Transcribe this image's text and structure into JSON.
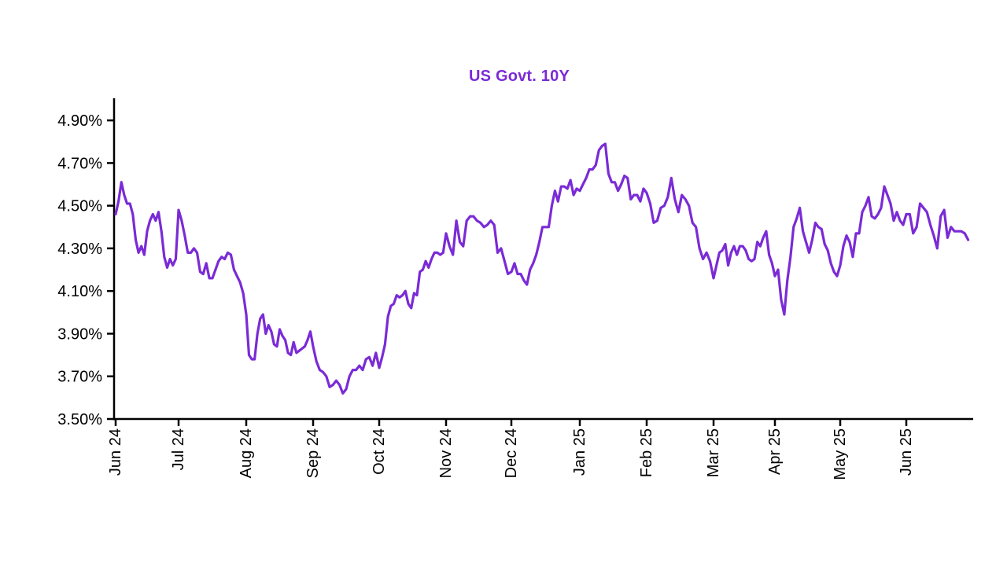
{
  "chart_data": {
    "type": "line",
    "title": "US Govt. 10Y",
    "series_name": "US Govt. 10Y yield",
    "xlabel": "",
    "ylabel": "",
    "ylim": [
      3.5,
      5.0
    ],
    "grid": false,
    "legend": "none",
    "colors": {
      "line": "#7A2BD6",
      "title": "#7A2BD6",
      "axis": "#000000",
      "tick_text": "#000000",
      "background": "#FFFFFF"
    },
    "yticks": [
      {
        "value": 4.9,
        "label": "4.90%"
      },
      {
        "value": 4.7,
        "label": "4.70%"
      },
      {
        "value": 4.5,
        "label": "4.50%"
      },
      {
        "value": 4.3,
        "label": "4.30%"
      },
      {
        "value": 4.1,
        "label": "4.10%"
      },
      {
        "value": 3.9,
        "label": "3.90%"
      },
      {
        "value": 3.7,
        "label": "3.70%"
      },
      {
        "value": 3.5,
        "label": "3.50%"
      }
    ],
    "months": [
      {
        "label": "Jun 24",
        "values": [
          4.46,
          4.52,
          4.61,
          4.55,
          4.51,
          4.51,
          4.46,
          4.34,
          4.28,
          4.31,
          4.27,
          4.38,
          4.43,
          4.46,
          4.43,
          4.47,
          4.38,
          4.26,
          4.21,
          4.25,
          4.22,
          4.25
        ]
      },
      {
        "label": "Jul 24",
        "values": [
          4.48,
          4.43,
          4.36,
          4.28,
          4.28,
          4.3,
          4.28,
          4.19,
          4.18,
          4.23,
          4.16,
          4.16,
          4.2,
          4.24,
          4.26,
          4.25,
          4.28,
          4.27,
          4.2,
          4.17,
          4.14,
          4.09
        ]
      },
      {
        "label": "Aug 24",
        "values": [
          3.99,
          3.8,
          3.78,
          3.78,
          3.9,
          3.97,
          3.99,
          3.9,
          3.94,
          3.91,
          3.85,
          3.84,
          3.92,
          3.89,
          3.87,
          3.81,
          3.8,
          3.86,
          3.81,
          3.82,
          3.83,
          3.84,
          3.87,
          3.91
        ]
      },
      {
        "label": "Sep 24",
        "values": [
          3.84,
          3.77,
          3.73,
          3.72,
          3.7,
          3.65,
          3.66,
          3.68,
          3.66,
          3.62,
          3.64,
          3.7,
          3.73,
          3.73,
          3.75,
          3.73,
          3.78,
          3.79,
          3.75,
          3.81
        ]
      },
      {
        "label": "Oct 24",
        "values": [
          3.74,
          3.79,
          3.85,
          3.98,
          4.03,
          4.04,
          4.08,
          4.07,
          4.08,
          4.1,
          4.04,
          4.02,
          4.09,
          4.08,
          4.19,
          4.2,
          4.24,
          4.21,
          4.25,
          4.28,
          4.28,
          4.27,
          4.28
        ]
      },
      {
        "label": "Nov 24",
        "values": [
          4.37,
          4.31,
          4.27,
          4.43,
          4.33,
          4.31,
          4.43,
          4.45,
          4.45,
          4.43,
          4.42,
          4.4,
          4.41,
          4.43,
          4.41,
          4.28,
          4.3,
          4.24,
          4.18
        ]
      },
      {
        "label": "Dec 24",
        "values": [
          4.19,
          4.23,
          4.18,
          4.18,
          4.15,
          4.13,
          4.2,
          4.23,
          4.27,
          4.33,
          4.4,
          4.4,
          4.4,
          4.5,
          4.57,
          4.52,
          4.59,
          4.59,
          4.58,
          4.62,
          4.55,
          4.58
        ]
      },
      {
        "label": "Jan 25",
        "values": [
          4.57,
          4.6,
          4.63,
          4.67,
          4.67,
          4.69,
          4.76,
          4.78,
          4.79,
          4.65,
          4.61,
          4.61,
          4.57,
          4.6,
          4.64,
          4.63,
          4.53,
          4.55,
          4.55,
          4.52,
          4.58
        ]
      },
      {
        "label": "Feb 25",
        "values": [
          4.56,
          4.51,
          4.42,
          4.43,
          4.49,
          4.5,
          4.54,
          4.63,
          4.53,
          4.47,
          4.55,
          4.53,
          4.5,
          4.42,
          4.4,
          4.3,
          4.25,
          4.28,
          4.24
        ]
      },
      {
        "label": "Mar 25",
        "values": [
          4.16,
          4.22,
          4.28,
          4.29,
          4.32,
          4.22,
          4.28,
          4.31,
          4.27,
          4.31,
          4.31,
          4.29,
          4.25,
          4.24,
          4.25,
          4.33,
          4.31,
          4.35,
          4.38,
          4.27,
          4.23
        ]
      },
      {
        "label": "Apr 25",
        "values": [
          4.17,
          4.2,
          4.06,
          3.99,
          4.15,
          4.26,
          4.4,
          4.44,
          4.49,
          4.38,
          4.33,
          4.28,
          4.34,
          4.42,
          4.4,
          4.39,
          4.32,
          4.29,
          4.23,
          4.19,
          4.17
        ]
      },
      {
        "label": "May 25",
        "values": [
          4.22,
          4.31,
          4.36,
          4.33,
          4.26,
          4.37,
          4.37,
          4.47,
          4.5,
          4.54,
          4.45,
          4.44,
          4.46,
          4.49,
          4.59,
          4.55,
          4.51,
          4.43,
          4.47,
          4.43,
          4.41
        ]
      },
      {
        "label": "Jun 25",
        "values": [
          4.46,
          4.46,
          4.37,
          4.4,
          4.51,
          4.49,
          4.47,
          4.41,
          4.36,
          4.3,
          4.45,
          4.48,
          4.35,
          4.4,
          4.38,
          4.38,
          4.38,
          4.37,
          4.34
        ]
      }
    ]
  }
}
